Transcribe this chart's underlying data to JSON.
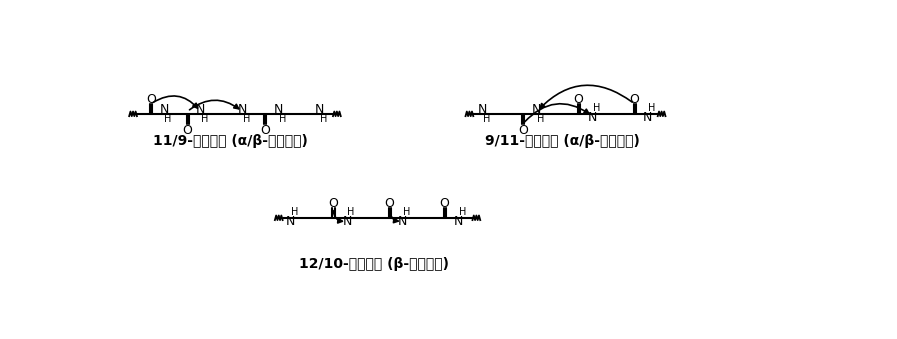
{
  "label1": "11/9-나선구조 (α/β-펩타이드)",
  "label2": "9/11-나선구조 (α/β-펩타이드)",
  "label3": "12/10-나선구조 (β-펩타이드)",
  "bg_color": "#ffffff",
  "line_color": "#000000"
}
